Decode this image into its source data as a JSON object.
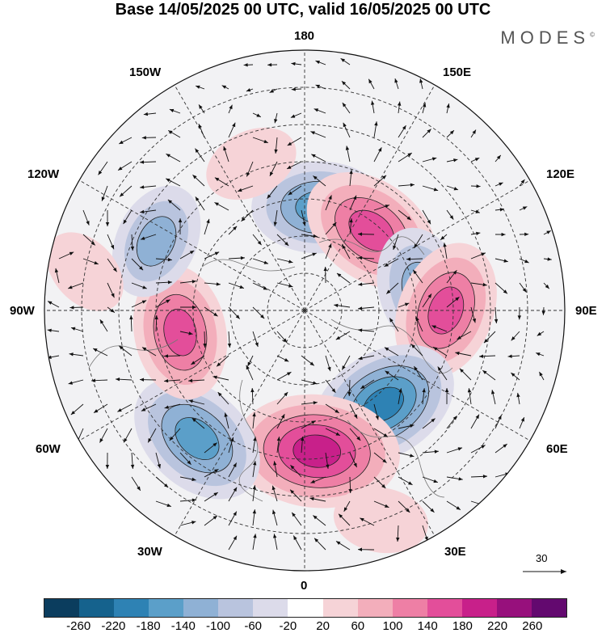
{
  "title": "Base 14/05/2025 00 UTC, valid 16/05/2025 00 UTC",
  "brand": "MODES",
  "brand_mark": "©",
  "labels": {
    "lon_180": "180",
    "lon_150w": "150W",
    "lon_150e": "150E",
    "lon_120w": "120W",
    "lon_120e": "120E",
    "lon_90w": "90W",
    "lon_90e": "90E",
    "lon_60w": "60W",
    "lon_60e": "60E",
    "lon_30w": "30W",
    "lon_30e": "30E",
    "lon_0": "0"
  },
  "reference_vector": {
    "value": "30"
  },
  "colorbar": {
    "ticks": [
      "-260",
      "-220",
      "-180",
      "-140",
      "-100",
      "-60",
      "-20",
      "20",
      "60",
      "100",
      "140",
      "180",
      "220",
      "260"
    ],
    "colors": [
      "#0b3d5e",
      "#15628d",
      "#2e82b4",
      "#5b9fc9",
      "#8fb1d5",
      "#b9c4de",
      "#dcdbea",
      "#ffffff",
      "#f6d3d7",
      "#f3aebb",
      "#ee7fa5",
      "#e34e9a",
      "#c8208a",
      "#97107c",
      "#63096f"
    ]
  },
  "anomalies": [
    {
      "lon": 172,
      "lat": 62,
      "value": -150
    },
    {
      "lon": 140,
      "lat": 62,
      "value": 170
    },
    {
      "lon": 100,
      "lat": 58,
      "value": -130
    },
    {
      "lon": 90,
      "lat": 52,
      "value": 160
    },
    {
      "lon": 40,
      "lat": 57,
      "value": -190
    },
    {
      "lon": 5,
      "lat": 52,
      "value": 220
    },
    {
      "lon": -40,
      "lat": 45,
      "value": -170
    },
    {
      "lon": -80,
      "lat": 56,
      "value": 150
    },
    {
      "lon": -115,
      "lat": 46,
      "value": -110
    },
    {
      "lon": -160,
      "lat": 48,
      "value": 60
    },
    {
      "lon": 20,
      "lat": 30,
      "value": 60
    },
    {
      "lon": -100,
      "lat": 30,
      "value": 50
    }
  ]
}
